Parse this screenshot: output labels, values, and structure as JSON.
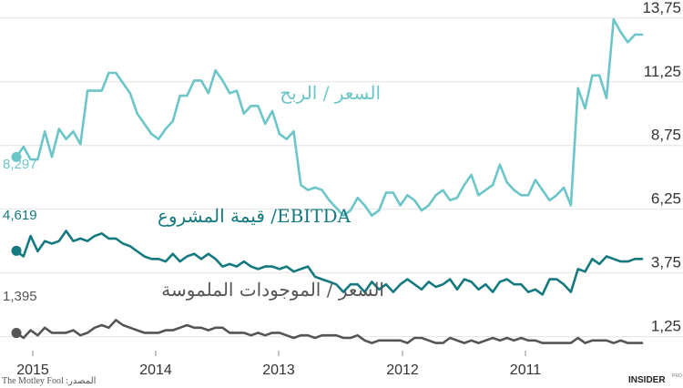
{
  "chart_data": {
    "type": "line",
    "title": "",
    "xlabel": "",
    "ylabel": "",
    "x_tick_labels": [
      "2015",
      "2014",
      "2013",
      "2012",
      "2011"
    ],
    "y_tick_labels": [
      "13,75",
      "11,25",
      "8,75",
      "6,25",
      "3,75",
      "1,25"
    ],
    "y_ticks": [
      13.75,
      11.25,
      8.75,
      6.25,
      3.75,
      1.25
    ],
    "ylim": [
      0.7,
      14.1
    ],
    "grid": true,
    "x_direction": "right-to-left (time runs from 2011 on the right to 2015 on the left)",
    "series": [
      {
        "name": "السعر / الربح",
        "color": "#6cc5c8",
        "start_label": "8,297",
        "start_value": 8.297,
        "points": [
          [
            0,
            8.3
          ],
          [
            1,
            8.7
          ],
          [
            2,
            8.2
          ],
          [
            3,
            8.2
          ],
          [
            4,
            9.3
          ],
          [
            5,
            8.3
          ],
          [
            6,
            9.4
          ],
          [
            7,
            9.0
          ],
          [
            8,
            9.3
          ],
          [
            9,
            8.8
          ],
          [
            10,
            10.9
          ],
          [
            12,
            10.9
          ],
          [
            13,
            11.6
          ],
          [
            14,
            11.6
          ],
          [
            15,
            11.2
          ],
          [
            16,
            10.8
          ],
          [
            17,
            10.0
          ],
          [
            18,
            9.6
          ],
          [
            19,
            9.2
          ],
          [
            20,
            9.0
          ],
          [
            21,
            9.4
          ],
          [
            22,
            9.7
          ],
          [
            23,
            10.7
          ],
          [
            24,
            10.7
          ],
          [
            25,
            11.3
          ],
          [
            26,
            11.3
          ],
          [
            27,
            10.8
          ],
          [
            28,
            11.7
          ],
          [
            29,
            11.3
          ],
          [
            30,
            10.8
          ],
          [
            31,
            10.9
          ],
          [
            32,
            10.0
          ],
          [
            33,
            10.3
          ],
          [
            34,
            10.3
          ],
          [
            35,
            9.6
          ],
          [
            36,
            10.1
          ],
          [
            37,
            9.2
          ],
          [
            38,
            9.0
          ],
          [
            39,
            9.3
          ],
          [
            40,
            7.2
          ],
          [
            41,
            7.0
          ],
          [
            42,
            7.1
          ],
          [
            43,
            7.0
          ],
          [
            44,
            6.6
          ],
          [
            45,
            6.3
          ],
          [
            46,
            6.0
          ],
          [
            47,
            6.2
          ],
          [
            48,
            6.7
          ],
          [
            49,
            6.4
          ],
          [
            50,
            6.0
          ],
          [
            51,
            6.2
          ],
          [
            52,
            6.9
          ],
          [
            53,
            6.9
          ],
          [
            54,
            6.4
          ],
          [
            55,
            6.8
          ],
          [
            56,
            6.6
          ],
          [
            57,
            6.2
          ],
          [
            58,
            6.4
          ],
          [
            59,
            6.8
          ],
          [
            60,
            7.0
          ],
          [
            61,
            6.6
          ],
          [
            62,
            6.7
          ],
          [
            63,
            7.2
          ],
          [
            64,
            7.6
          ],
          [
            65,
            6.8
          ],
          [
            66,
            7.0
          ],
          [
            67,
            7.2
          ],
          [
            68,
            8.0
          ],
          [
            69,
            7.3
          ],
          [
            70,
            7.0
          ],
          [
            71,
            6.8
          ],
          [
            72,
            6.8
          ],
          [
            73,
            7.4
          ],
          [
            74,
            7.0
          ],
          [
            75,
            6.6
          ],
          [
            76,
            6.8
          ],
          [
            77,
            7.1
          ],
          [
            78,
            6.4
          ],
          [
            79,
            11.0
          ],
          [
            80,
            10.2
          ],
          [
            81,
            11.5
          ],
          [
            82,
            11.5
          ],
          [
            83,
            10.6
          ],
          [
            84,
            13.7
          ],
          [
            85,
            13.2
          ],
          [
            86,
            12.8
          ],
          [
            87,
            13.1
          ],
          [
            88,
            13.1
          ]
        ]
      },
      {
        "name": "قيمة المشروع /EBITDA",
        "color": "#157a80",
        "start_label": "4,619",
        "start_value": 4.619,
        "points": [
          [
            0,
            4.6
          ],
          [
            1,
            4.4
          ],
          [
            2,
            5.2
          ],
          [
            3,
            4.6
          ],
          [
            4,
            5.0
          ],
          [
            5,
            4.9
          ],
          [
            6,
            5.0
          ],
          [
            7,
            5.4
          ],
          [
            8,
            5.0
          ],
          [
            9,
            5.1
          ],
          [
            10,
            5.0
          ],
          [
            11,
            5.2
          ],
          [
            12,
            5.3
          ],
          [
            13,
            5.1
          ],
          [
            14,
            5.1
          ],
          [
            15,
            4.9
          ],
          [
            16,
            4.8
          ],
          [
            17,
            4.6
          ],
          [
            18,
            4.4
          ],
          [
            19,
            4.3
          ],
          [
            20,
            4.3
          ],
          [
            21,
            4.2
          ],
          [
            22,
            4.5
          ],
          [
            23,
            4.2
          ],
          [
            24,
            4.4
          ],
          [
            25,
            4.5
          ],
          [
            26,
            4.3
          ],
          [
            27,
            4.5
          ],
          [
            28,
            4.3
          ],
          [
            29,
            4.0
          ],
          [
            30,
            4.1
          ],
          [
            31,
            4.0
          ],
          [
            32,
            4.2
          ],
          [
            33,
            4.0
          ],
          [
            34,
            3.9
          ],
          [
            35,
            4.0
          ],
          [
            36,
            4.0
          ],
          [
            37,
            3.9
          ],
          [
            38,
            4.0
          ],
          [
            39,
            3.8
          ],
          [
            40,
            3.9
          ],
          [
            41,
            4.0
          ],
          [
            42,
            3.6
          ],
          [
            43,
            3.5
          ],
          [
            44,
            3.4
          ],
          [
            45,
            3.3
          ],
          [
            46,
            3.0
          ],
          [
            47,
            3.3
          ],
          [
            48,
            3.3
          ],
          [
            49,
            3.0
          ],
          [
            50,
            3.4
          ],
          [
            51,
            3.1
          ],
          [
            52,
            3.3
          ],
          [
            53,
            3.0
          ],
          [
            54,
            3.3
          ],
          [
            55,
            3.5
          ],
          [
            56,
            3.3
          ],
          [
            57,
            3.1
          ],
          [
            58,
            3.4
          ],
          [
            59,
            3.2
          ],
          [
            60,
            3.3
          ],
          [
            61,
            3.5
          ],
          [
            62,
            3.1
          ],
          [
            63,
            3.5
          ],
          [
            64,
            3.4
          ],
          [
            65,
            3.1
          ],
          [
            66,
            3.3
          ],
          [
            67,
            3.0
          ],
          [
            68,
            3.4
          ],
          [
            69,
            3.5
          ],
          [
            70,
            3.3
          ],
          [
            71,
            3.3
          ],
          [
            72,
            3.0
          ],
          [
            73,
            3.1
          ],
          [
            74,
            2.9
          ],
          [
            75,
            3.5
          ],
          [
            76,
            3.5
          ],
          [
            77,
            3.3
          ],
          [
            78,
            3.0
          ],
          [
            79,
            3.9
          ],
          [
            80,
            3.8
          ],
          [
            81,
            4.3
          ],
          [
            82,
            4.1
          ],
          [
            83,
            4.4
          ],
          [
            84,
            4.3
          ],
          [
            85,
            4.2
          ],
          [
            86,
            4.2
          ],
          [
            87,
            4.3
          ],
          [
            88,
            4.3
          ]
        ]
      },
      {
        "name": "السعر / الموجودات الملموسة",
        "color": "#555555",
        "start_label": "1,395",
        "start_value": 1.395,
        "points": [
          [
            0,
            1.4
          ],
          [
            1,
            1.2
          ],
          [
            2,
            1.5
          ],
          [
            3,
            1.3
          ],
          [
            4,
            1.6
          ],
          [
            5,
            1.4
          ],
          [
            6,
            1.4
          ],
          [
            7,
            1.4
          ],
          [
            8,
            1.5
          ],
          [
            9,
            1.3
          ],
          [
            10,
            1.4
          ],
          [
            11,
            1.6
          ],
          [
            12,
            1.7
          ],
          [
            13,
            1.6
          ],
          [
            14,
            1.9
          ],
          [
            15,
            1.7
          ],
          [
            16,
            1.6
          ],
          [
            17,
            1.5
          ],
          [
            18,
            1.4
          ],
          [
            19,
            1.4
          ],
          [
            20,
            1.4
          ],
          [
            21,
            1.5
          ],
          [
            22,
            1.5
          ],
          [
            23,
            1.6
          ],
          [
            24,
            1.7
          ],
          [
            25,
            1.6
          ],
          [
            26,
            1.6
          ],
          [
            27,
            1.5
          ],
          [
            28,
            1.6
          ],
          [
            29,
            1.6
          ],
          [
            30,
            1.4
          ],
          [
            31,
            1.4
          ],
          [
            32,
            1.4
          ],
          [
            33,
            1.3
          ],
          [
            34,
            1.4
          ],
          [
            35,
            1.3
          ],
          [
            36,
            1.4
          ],
          [
            37,
            1.4
          ],
          [
            38,
            1.3
          ],
          [
            39,
            1.2
          ],
          [
            40,
            1.3
          ],
          [
            41,
            1.3
          ],
          [
            42,
            1.2
          ],
          [
            43,
            1.3
          ],
          [
            44,
            1.3
          ],
          [
            45,
            1.3
          ],
          [
            46,
            1.2
          ],
          [
            47,
            1.2
          ],
          [
            48,
            1.3
          ],
          [
            49,
            1.1
          ],
          [
            50,
            1.0
          ],
          [
            51,
            1.1
          ],
          [
            52,
            1.1
          ],
          [
            53,
            1.1
          ],
          [
            54,
            1.1
          ],
          [
            55,
            1.0
          ],
          [
            56,
            1.2
          ],
          [
            57,
            1.2
          ],
          [
            58,
            1.1
          ],
          [
            59,
            1.0
          ],
          [
            60,
            1.0
          ],
          [
            61,
            1.2
          ],
          [
            62,
            1.1
          ],
          [
            63,
            1.0
          ],
          [
            64,
            1.1
          ],
          [
            65,
            1.0
          ],
          [
            66,
            1.1
          ],
          [
            67,
            1.2
          ],
          [
            68,
            1.1
          ],
          [
            69,
            1.2
          ],
          [
            70,
            1.1
          ],
          [
            71,
            1.2
          ],
          [
            72,
            1.1
          ],
          [
            73,
            1.1
          ],
          [
            74,
            1.0
          ],
          [
            75,
            1.0
          ],
          [
            76,
            1.0
          ],
          [
            77,
            1.0
          ],
          [
            78,
            1.0
          ],
          [
            79,
            1.2
          ],
          [
            80,
            1.0
          ],
          [
            81,
            1.1
          ],
          [
            82,
            1.1
          ],
          [
            83,
            1.1
          ],
          [
            84,
            1.0
          ],
          [
            85,
            1.1
          ],
          [
            86,
            1.0
          ],
          [
            87,
            1.0
          ],
          [
            88,
            1.0
          ]
        ]
      }
    ]
  },
  "footer": {
    "source": "The Motley Fool :المصدر",
    "brand": "INSIDER",
    "brand_sub": "PRO"
  }
}
